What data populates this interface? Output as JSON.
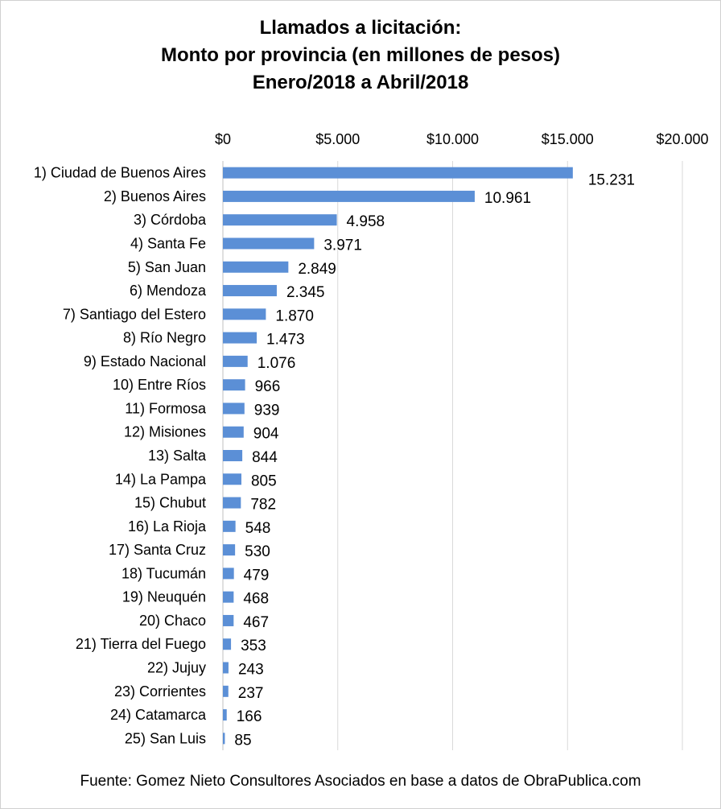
{
  "chart_data": {
    "type": "bar",
    "orientation": "horizontal",
    "title_lines": [
      "Llamados a licitación:",
      "Monto por provincia (en millones de pesos)",
      "Enero/2018 a Abril/2018"
    ],
    "categories": [
      "1) Ciudad de Buenos Aires",
      "2) Buenos Aires",
      "3) Córdoba",
      "4) Santa Fe",
      "5) San Juan",
      "6) Mendoza",
      "7) Santiago del Estero",
      "8) Río Negro",
      "9) Estado Nacional",
      "10) Entre Ríos",
      "11) Formosa",
      "12) Misiones",
      "13) Salta",
      "14) La Pampa",
      "15) Chubut",
      "16) La Rioja",
      "17) Santa Cruz",
      "18) Tucumán",
      "19) Neuquén",
      "20) Chaco",
      "21) Tierra del Fuego",
      "22) Jujuy",
      "23) Corrientes",
      "24) Catamarca",
      "25) San Luis"
    ],
    "values": [
      15231,
      10961,
      4958,
      3971,
      2849,
      2345,
      1870,
      1473,
      1076,
      966,
      939,
      904,
      844,
      805,
      782,
      548,
      530,
      479,
      468,
      467,
      353,
      243,
      237,
      166,
      85
    ],
    "value_labels": [
      "15.231",
      "10.961",
      "4.958",
      "3.971",
      "2.849",
      "2.345",
      "1.870",
      "1.473",
      "1.076",
      "966",
      "939",
      "904",
      "844",
      "805",
      "782",
      "548",
      "530",
      "479",
      "468",
      "467",
      "353",
      "243",
      "237",
      "166",
      "85"
    ],
    "xlim": [
      0,
      20000
    ],
    "x_ticks": [
      0,
      5000,
      10000,
      15000,
      20000
    ],
    "x_tick_labels": [
      "$0",
      "$5.000",
      "$10.000",
      "$15.000",
      "$20.000"
    ],
    "x_axis_position": "top",
    "grid": "vertical",
    "legend": "none",
    "bar_color": "#5b8fd6",
    "source": "Fuente: Gomez Nieto Consultores Asociados en base a datos de ObraPublica.com"
  }
}
